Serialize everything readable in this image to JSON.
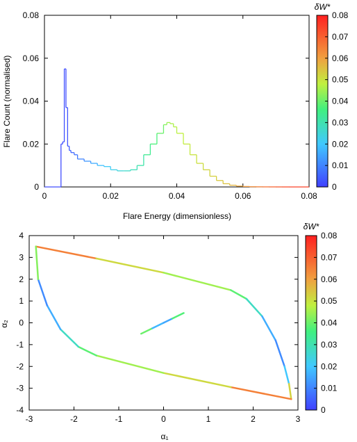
{
  "chart_data": [
    {
      "type": "line",
      "xlabel": "Flare Energy (dimensionless)",
      "ylabel": "Flare Count (normalised)",
      "xlim": [
        0,
        0.08
      ],
      "ylim": [
        0,
        0.08
      ],
      "xticks": [
        "0",
        "0.02",
        "0.04",
        "0.06",
        "0.08"
      ],
      "yticks": [
        "0",
        "0.02",
        "0.04",
        "0.06",
        "0.08"
      ],
      "grid": false,
      "colorbar": {
        "label": "δW*",
        "range": [
          0,
          0.08
        ],
        "ticks": [
          "0",
          "0.01",
          "0.02",
          "0.03",
          "0.04",
          "0.05",
          "0.06",
          "0.07",
          "0.08"
        ]
      },
      "histogram": {
        "x": [
          0.005,
          0.0055,
          0.006,
          0.0065,
          0.007,
          0.0075,
          0.008,
          0.009,
          0.01,
          0.012,
          0.014,
          0.016,
          0.018,
          0.02,
          0.022,
          0.024,
          0.026,
          0.028,
          0.03,
          0.032,
          0.034,
          0.036,
          0.037,
          0.038,
          0.039,
          0.04,
          0.042,
          0.044,
          0.046,
          0.048,
          0.05,
          0.052,
          0.054,
          0.056,
          0.058,
          0.06,
          0.062,
          0.064,
          0.066,
          0.068,
          0.07,
          0.072,
          0.074
        ],
        "y": [
          0.02,
          0.021,
          0.055,
          0.037,
          0.019,
          0.017,
          0.016,
          0.015,
          0.013,
          0.012,
          0.011,
          0.01,
          0.0095,
          0.008,
          0.0075,
          0.0075,
          0.008,
          0.01,
          0.015,
          0.02,
          0.025,
          0.029,
          0.03,
          0.0295,
          0.028,
          0.025,
          0.02,
          0.015,
          0.011,
          0.008,
          0.005,
          0.003,
          0.0015,
          0.0008,
          0.0004,
          0.0002,
          0.0001,
          6e-05,
          3e-05,
          2e-05,
          1e-05,
          5e-06,
          0.0
        ],
        "color_value": [
          0.002,
          0.002,
          0.002,
          0.003,
          0.004,
          0.005,
          0.006,
          0.008,
          0.01,
          0.013,
          0.016,
          0.019,
          0.021,
          0.023,
          0.025,
          0.027,
          0.029,
          0.031,
          0.034,
          0.037,
          0.04,
          0.043,
          0.045,
          0.046,
          0.047,
          0.048,
          0.049,
          0.05,
          0.051,
          0.052,
          0.053,
          0.054,
          0.055,
          0.057,
          0.059,
          0.061,
          0.063,
          0.065,
          0.067,
          0.069,
          0.071,
          0.073,
          0.075
        ]
      }
    },
    {
      "type": "line",
      "xlabel": "α₁",
      "ylabel": "α₂",
      "xlim": [
        -3,
        3
      ],
      "ylim": [
        -4,
        4
      ],
      "xticks": [
        "-3",
        "-2",
        "-1",
        "0",
        "1",
        "2",
        "3"
      ],
      "yticks": [
        "-4",
        "-3",
        "-2",
        "-1",
        "0",
        "1",
        "2",
        "3",
        "4"
      ],
      "grid": false,
      "colorbar": {
        "label": "δW*",
        "range": [
          0,
          0.08
        ],
        "ticks": [
          "0",
          "0.01",
          "0.02",
          "0.03",
          "0.04",
          "0.05",
          "0.06",
          "0.07",
          "0.08"
        ]
      },
      "loop": {
        "x": [
          -2.85,
          -1.5,
          0.0,
          1.5,
          1.85,
          2.2,
          2.5,
          2.7,
          2.8,
          2.85,
          1.5,
          0.0,
          -1.5,
          -1.9,
          -2.3,
          -2.6,
          -2.8,
          -2.85
        ],
        "y": [
          3.5,
          2.95,
          2.3,
          1.5,
          1.1,
          0.3,
          -0.8,
          -2.0,
          -2.8,
          -3.5,
          -2.95,
          -2.3,
          -1.5,
          -1.1,
          -0.3,
          0.8,
          2.0,
          3.5
        ],
        "color_value": [
          0.075,
          0.055,
          0.048,
          0.042,
          0.035,
          0.02,
          0.012,
          0.01,
          0.03,
          0.075,
          0.055,
          0.048,
          0.042,
          0.035,
          0.02,
          0.012,
          0.01,
          0.075
        ]
      },
      "segment": {
        "x": [
          -0.5,
          -0.25,
          0.0,
          0.2,
          0.45
        ],
        "y": [
          -0.5,
          -0.25,
          0.0,
          0.2,
          0.45
        ],
        "color_value": [
          0.05,
          0.03,
          0.005,
          0.025,
          0.05
        ]
      }
    }
  ]
}
